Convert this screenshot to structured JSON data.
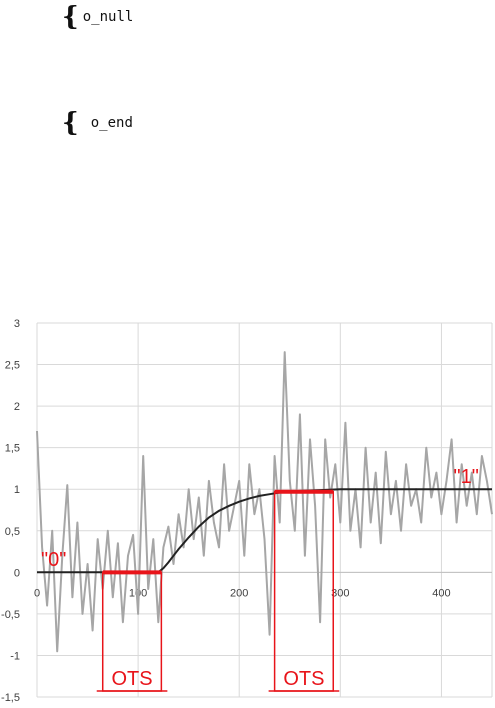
{
  "annotations": [
    {
      "label": "o_null"
    },
    {
      "label": "o_end"
    }
  ],
  "chart_data": {
    "type": "line",
    "xlim": [
      0,
      450
    ],
    "ylim": [
      -1.5,
      3
    ],
    "x_ticks": [
      "0",
      "100",
      "200",
      "300",
      "400"
    ],
    "y_ticks": [
      "3",
      "2,5",
      "2",
      "1,5",
      "1",
      "0,5",
      "0",
      "-0,5",
      "-1",
      "-1,5"
    ],
    "x_tick_values": [
      0,
      100,
      200,
      300,
      400
    ],
    "y_tick_values": [
      3,
      2.5,
      2,
      1.5,
      1,
      0.5,
      0,
      -0.5,
      -1,
      -1.5
    ],
    "grid": true,
    "colors": {
      "noisy": "#a6a6a6",
      "model": "#222222",
      "highlight": "#e8141a",
      "grid": "#d9d9d9"
    },
    "series": [
      {
        "type": "noisy-line",
        "x": [
          0,
          5,
          10,
          15,
          20,
          25,
          30,
          35,
          40,
          45,
          50,
          55,
          60,
          65,
          70,
          75,
          80,
          85,
          90,
          95,
          100,
          105,
          110,
          115,
          120,
          125,
          130,
          135,
          140,
          145,
          150,
          155,
          160,
          165,
          170,
          175,
          180,
          185,
          190,
          195,
          200,
          205,
          210,
          215,
          220,
          225,
          230,
          235,
          240,
          245,
          250,
          255,
          260,
          265,
          270,
          275,
          280,
          285,
          290,
          295,
          300,
          305,
          310,
          315,
          320,
          325,
          330,
          335,
          340,
          345,
          350,
          355,
          360,
          365,
          370,
          375,
          380,
          385,
          390,
          395,
          400,
          405,
          410,
          415,
          420,
          425,
          430,
          435,
          440,
          445,
          450
        ],
        "y": [
          1.7,
          0.3,
          -0.4,
          0.5,
          -0.95,
          0.2,
          1.05,
          -0.3,
          0.6,
          -0.5,
          0.1,
          -0.7,
          0.4,
          -0.2,
          0.5,
          -0.3,
          0.35,
          -0.6,
          0.2,
          0.45,
          -0.5,
          1.4,
          -0.2,
          0.4,
          -0.6,
          0.3,
          0.55,
          0.1,
          0.7,
          0.3,
          1.0,
          0.4,
          0.9,
          0.2,
          1.1,
          0.6,
          0.3,
          1.3,
          0.5,
          0.8,
          1.1,
          0.2,
          1.3,
          0.7,
          1.0,
          0.4,
          -0.75,
          1.4,
          0.6,
          2.65,
          1.1,
          0.5,
          1.9,
          0.2,
          1.6,
          0.8,
          -0.6,
          1.6,
          0.9,
          1.3,
          0.6,
          1.8,
          0.5,
          1.0,
          0.3,
          1.5,
          0.6,
          1.2,
          0.35,
          1.45,
          0.7,
          1.1,
          0.5,
          1.3,
          0.8,
          1.0,
          0.6,
          1.5,
          0.9,
          1.2,
          0.7,
          1.1,
          1.6,
          0.6,
          1.3,
          0.8,
          1.2,
          0.7,
          1.4,
          1.1,
          0.7
        ]
      },
      {
        "type": "model-curve",
        "x": [
          0,
          120,
          125,
          130,
          135,
          140,
          150,
          160,
          170,
          180,
          190,
          200,
          210,
          220,
          230,
          240,
          260,
          280,
          300,
          350,
          400,
          450
        ],
        "y": [
          0,
          0,
          0.05,
          0.12,
          0.2,
          0.28,
          0.42,
          0.55,
          0.66,
          0.74,
          0.8,
          0.85,
          0.89,
          0.92,
          0.94,
          0.96,
          0.98,
          0.99,
          1.0,
          1.0,
          1.0,
          1.0
        ]
      }
    ],
    "labels": [
      {
        "text": "\"0\"",
        "x": 2,
        "y": 0.05
      },
      {
        "text": "\"1\"",
        "x": 410,
        "y": 1.05
      }
    ],
    "windows": [
      {
        "text": "OTS",
        "x0": 65,
        "x1": 123,
        "level": 0
      },
      {
        "text": "OTS",
        "x0": 235,
        "x1": 293,
        "level": 0.97
      }
    ]
  }
}
